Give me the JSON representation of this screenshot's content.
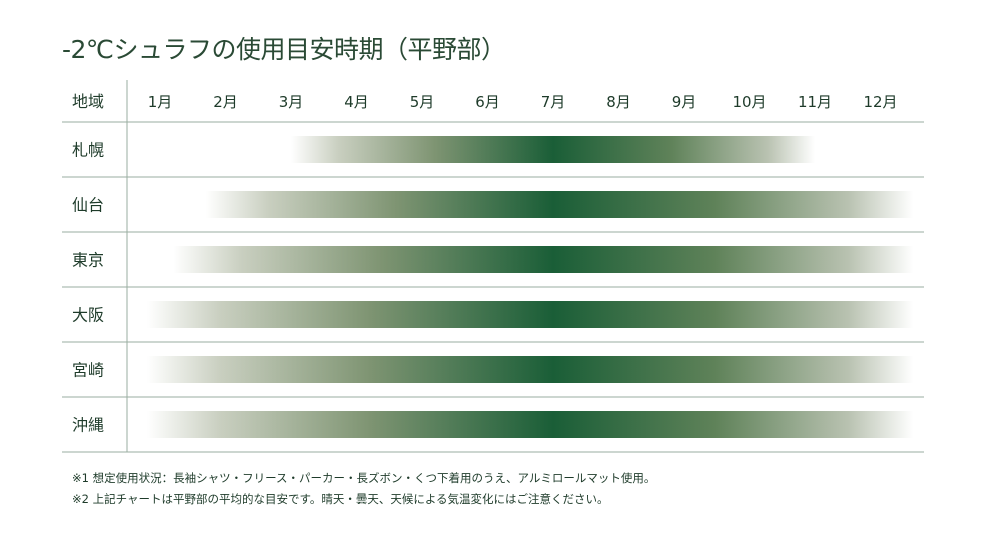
{
  "title": "-2℃シュラフの使用目安時期（平野部）",
  "chart_data": {
    "type": "heatmap",
    "title": "-2℃シュラフの使用目安時期（平野部）",
    "row_header": "地域",
    "categories": [
      "1月",
      "2月",
      "3月",
      "4月",
      "5月",
      "6月",
      "7月",
      "8月",
      "9月",
      "10月",
      "11月",
      "12月"
    ],
    "rows": [
      {
        "label": "札幌",
        "start": 3.0,
        "peak": 7.0,
        "end": 11.0
      },
      {
        "label": "仙台",
        "start": 1.7,
        "peak": 7.0,
        "end": 12.5
      },
      {
        "label": "東京",
        "start": 1.2,
        "peak": 7.0,
        "end": 12.5
      },
      {
        "label": "大阪",
        "start": 0.8,
        "peak": 7.0,
        "end": 12.5
      },
      {
        "label": "宮崎",
        "start": 0.8,
        "peak": 7.0,
        "end": 12.5
      },
      {
        "label": "沖縄",
        "start": 0.8,
        "peak": 7.0,
        "end": 12.5
      }
    ],
    "colors": {
      "peak": "#1a5e37",
      "fade": "#ffffff",
      "grid": "#9aaea0",
      "text": "#1e3b2a"
    }
  },
  "notes": [
    "※1 想定使用状況：長袖シャツ・フリース・パーカー・長ズボン・くつ下着用のうえ、アルミロールマット使用。",
    "※2 上記チャートは平野部の平均的な目安です。晴天・曇天、天候による気温変化にはご注意ください。"
  ]
}
